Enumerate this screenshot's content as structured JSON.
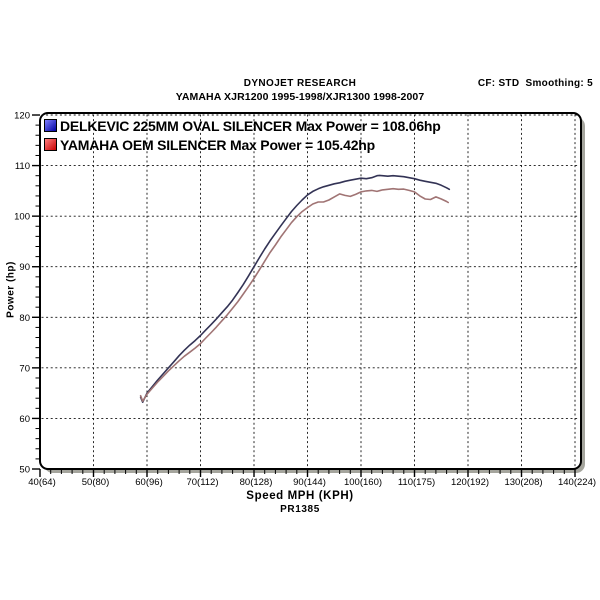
{
  "header": {
    "title": "DYNOJET RESEARCH",
    "subtitle": "YAMAHA XJR1200 1995-1998/XJR1300 1998-2007",
    "settings": "CF: STD  Smoothing: 5"
  },
  "legend": [
    {
      "label": "DELKEVIC 225MM OVAL SILENCER Max Power = 108.06hp",
      "swatch_light": "#8080ff",
      "swatch_dark": "#0000a0",
      "line_color": "#333355"
    },
    {
      "label": "YAMAHA OEM SILENCER Max Power = 105.42hp",
      "swatch_light": "#ff8080",
      "swatch_dark": "#c80000",
      "line_color": "#a07474"
    }
  ],
  "footer": {
    "code": "PR1385"
  },
  "chart_data": {
    "type": "line",
    "title": "DYNOJET RESEARCH — YAMAHA XJR1200 1995-1998/XJR1300 1998-2007",
    "xlabel": "Speed MPH (KPH)",
    "ylabel": "Power (hp)",
    "xlim": [
      40,
      140
    ],
    "ylim": [
      50,
      120
    ],
    "grid": "dashed black on white, major gridlines every 10 units both axes",
    "legend_position": "top-left inside plot",
    "x_ticks": [
      {
        "mph": 40,
        "label": "40(64)"
      },
      {
        "mph": 50,
        "label": "50(80)"
      },
      {
        "mph": 60,
        "label": "60(96)"
      },
      {
        "mph": 70,
        "label": "70(112)"
      },
      {
        "mph": 80,
        "label": "80(128)"
      },
      {
        "mph": 90,
        "label": "90(144)"
      },
      {
        "mph": 100,
        "label": "100(160)"
      },
      {
        "mph": 110,
        "label": "110(175)"
      },
      {
        "mph": 120,
        "label": "120(192)"
      },
      {
        "mph": 130,
        "label": "130(208)"
      },
      {
        "mph": 140,
        "label": "140(224)"
      }
    ],
    "y_ticks": [
      50,
      60,
      70,
      80,
      90,
      100,
      110,
      120
    ],
    "series": [
      {
        "name": "DELKEVIC 225MM OVAL SILENCER",
        "max_power_hp": 108.06,
        "color": "#333355",
        "points": [
          [
            58.8,
            64.2
          ],
          [
            59.2,
            63.2
          ],
          [
            60,
            65.0
          ],
          [
            61,
            66.3
          ],
          [
            62,
            67.6
          ],
          [
            63,
            68.8
          ],
          [
            64,
            70.0
          ],
          [
            65,
            71.2
          ],
          [
            66,
            72.4
          ],
          [
            67,
            73.5
          ],
          [
            68,
            74.5
          ],
          [
            69,
            75.4
          ],
          [
            70,
            76.4
          ],
          [
            71,
            77.5
          ],
          [
            72,
            78.6
          ],
          [
            73,
            79.7
          ],
          [
            74,
            80.9
          ],
          [
            75,
            82.1
          ],
          [
            76,
            83.4
          ],
          [
            77,
            84.9
          ],
          [
            78,
            86.5
          ],
          [
            79,
            88.2
          ],
          [
            80,
            90.0
          ],
          [
            81,
            91.8
          ],
          [
            82,
            93.5
          ],
          [
            83,
            95.1
          ],
          [
            84,
            96.6
          ],
          [
            85,
            98.1
          ],
          [
            86,
            99.5
          ],
          [
            87,
            100.9
          ],
          [
            88,
            102.1
          ],
          [
            89,
            103.2
          ],
          [
            90,
            104.2
          ],
          [
            91,
            104.9
          ],
          [
            92,
            105.4
          ],
          [
            93,
            105.8
          ],
          [
            94,
            106.1
          ],
          [
            95,
            106.4
          ],
          [
            96,
            106.6
          ],
          [
            97,
            106.9
          ],
          [
            98,
            107.1
          ],
          [
            99,
            107.3
          ],
          [
            100,
            107.5
          ],
          [
            101,
            107.4
          ],
          [
            102,
            107.6
          ],
          [
            103,
            108.0
          ],
          [
            103.5,
            108.06
          ],
          [
            104,
            108.0
          ],
          [
            105,
            107.9
          ],
          [
            106,
            108.0
          ],
          [
            107,
            107.9
          ],
          [
            108,
            107.8
          ],
          [
            109,
            107.6
          ],
          [
            110,
            107.4
          ],
          [
            111,
            107.1
          ],
          [
            112,
            106.9
          ],
          [
            113,
            106.7
          ],
          [
            114,
            106.5
          ],
          [
            115,
            106.1
          ],
          [
            116,
            105.6
          ],
          [
            116.5,
            105.3
          ]
        ]
      },
      {
        "name": "YAMAHA OEM SILENCER",
        "max_power_hp": 105.42,
        "color": "#a07474",
        "points": [
          [
            58.8,
            64.5
          ],
          [
            59.2,
            63.4
          ],
          [
            60,
            64.8
          ],
          [
            61,
            66.0
          ],
          [
            62,
            67.2
          ],
          [
            63,
            68.3
          ],
          [
            64,
            69.4
          ],
          [
            65,
            70.4
          ],
          [
            66,
            71.4
          ],
          [
            67,
            72.3
          ],
          [
            68,
            73.1
          ],
          [
            69,
            73.9
          ],
          [
            70,
            74.8
          ],
          [
            71,
            75.9
          ],
          [
            72,
            77.0
          ],
          [
            73,
            78.1
          ],
          [
            74,
            79.3
          ],
          [
            75,
            80.5
          ],
          [
            76,
            81.8
          ],
          [
            77,
            83.1
          ],
          [
            78,
            84.6
          ],
          [
            79,
            86.1
          ],
          [
            80,
            87.7
          ],
          [
            81,
            89.4
          ],
          [
            82,
            91.1
          ],
          [
            83,
            92.8
          ],
          [
            84,
            94.3
          ],
          [
            85,
            95.9
          ],
          [
            86,
            97.3
          ],
          [
            87,
            98.7
          ],
          [
            88,
            99.9
          ],
          [
            89,
            100.9
          ],
          [
            90,
            101.7
          ],
          [
            91,
            102.4
          ],
          [
            92,
            102.8
          ],
          [
            93,
            102.8
          ],
          [
            94,
            103.2
          ],
          [
            95,
            103.8
          ],
          [
            96,
            104.4
          ],
          [
            97,
            104.1
          ],
          [
            98,
            103.9
          ],
          [
            99,
            104.3
          ],
          [
            100,
            104.8
          ],
          [
            101,
            105.0
          ],
          [
            102,
            105.1
          ],
          [
            103,
            104.9
          ],
          [
            104,
            105.2
          ],
          [
            105,
            105.3
          ],
          [
            106,
            105.42
          ],
          [
            107,
            105.3
          ],
          [
            108,
            105.35
          ],
          [
            109,
            105.1
          ],
          [
            110,
            104.8
          ],
          [
            111,
            104.0
          ],
          [
            112,
            103.4
          ],
          [
            113,
            103.3
          ],
          [
            114,
            103.8
          ],
          [
            115,
            103.4
          ],
          [
            116,
            102.9
          ],
          [
            116.3,
            102.7
          ]
        ]
      }
    ]
  }
}
